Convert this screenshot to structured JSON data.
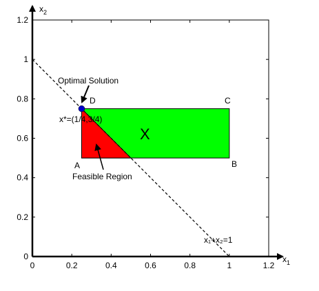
{
  "chart_data": {
    "type": "diagram",
    "xlim": [
      0,
      1.2
    ],
    "ylim": [
      0,
      1.2
    ],
    "x_ticks": [
      "0",
      "0.2",
      "0.4",
      "0.6",
      "0.8",
      "1",
      "1.2"
    ],
    "y_ticks": [
      "0",
      "0.2",
      "0.4",
      "0.6",
      "0.8",
      "1",
      "1.2"
    ],
    "x_axis_label": {
      "base": "x",
      "sub": "1"
    },
    "y_axis_label": {
      "base": "x",
      "sub": "2"
    },
    "rectangle": {
      "x": [
        0.25,
        1
      ],
      "y": [
        0.5,
        0.75
      ],
      "color": "#00ff00",
      "label": "X"
    },
    "feasible_triangle": {
      "points": [
        [
          0.25,
          0.5
        ],
        [
          0.5,
          0.5
        ],
        [
          0.25,
          0.75
        ]
      ],
      "color": "#ff0000"
    },
    "constraint_line": {
      "from": [
        0,
        1
      ],
      "to": [
        1,
        0
      ],
      "style": "dashed"
    },
    "constraint_label": "x₁+x₂=1",
    "optimal_point": {
      "x": 0.25,
      "y": 0.75,
      "color": "#0000cc"
    },
    "optimal_label": "x*=(1/4,3/4)",
    "corner_labels": {
      "A": "A",
      "B": "B",
      "C": "C",
      "D": "D"
    },
    "annotations": {
      "optimal_solution": "Optimal Solution",
      "feasible_region": "Feasible Region"
    }
  }
}
